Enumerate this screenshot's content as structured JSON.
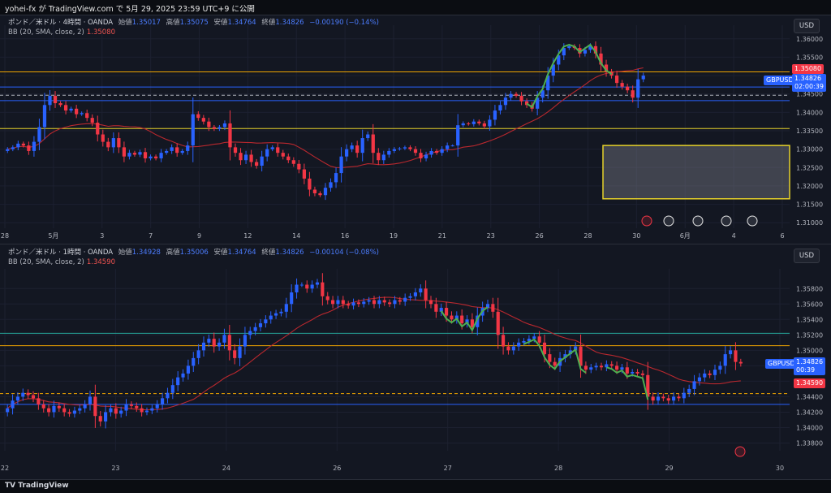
{
  "header": {
    "publish_line": "yohei-fx が TradingView.com で 5月 29, 2025 23:59 UTC+9 に公開"
  },
  "footer": {
    "logo_text": "TradingView"
  },
  "colors": {
    "up": "#2962ff",
    "down": "#f23645",
    "bb_mid": "#b9282e",
    "level_orange": "#f0a500",
    "level_yellow": "#e6d22a",
    "level_blue": "#2962ff",
    "level_teal": "#26a69a",
    "green_path": "#4caf50",
    "background": "#131722"
  },
  "top_chart": {
    "legend": {
      "symbol": "ポンド／米ドル · 4時間 · OANDA",
      "open_label": "始値",
      "open": "1.35017",
      "high_label": "高値",
      "high": "1.35075",
      "low_label": "安値",
      "low": "1.34764",
      "close_label": "終値",
      "close": "1.34826",
      "change": "−0.00190 (−0.14%)",
      "bb_label": "BB (20, SMA, close, 2)",
      "bb_value": "1.35080"
    },
    "currency": "USD",
    "price_axis": [
      "1.36000",
      "1.35500",
      "1.35000",
      "1.34500",
      "1.34000",
      "1.33500",
      "1.33000",
      "1.32500",
      "1.32000",
      "1.31500",
      "1.31000"
    ],
    "price_range": [
      1.3085,
      1.3615
    ],
    "x_labels": [
      "28",
      "5月",
      "3",
      "7",
      "9",
      "12",
      "14",
      "16",
      "19",
      "21",
      "23",
      "26",
      "28",
      "30",
      "6月",
      "4",
      "6"
    ],
    "badges": {
      "bb_tag": "1.35080",
      "symbol_tag": "GBPUSD",
      "price_tag": "1.34826",
      "countdown": "02:00:39"
    },
    "levels": [
      {
        "price": 1.351,
        "color": "orange",
        "style": "solid"
      },
      {
        "price": 1.3469,
        "color": "blue",
        "style": "solid"
      },
      {
        "price": 1.34465,
        "color": "white",
        "style": "dashed"
      },
      {
        "price": 1.3432,
        "color": "blue",
        "style": "solid"
      },
      {
        "price": 1.3356,
        "color": "yellow",
        "style": "solid"
      }
    ],
    "zone": {
      "price_top": 1.331,
      "price_bottom": 1.3165
    },
    "closes": [
      1.33,
      1.3305,
      1.3315,
      1.331,
      1.3295,
      1.332,
      1.336,
      1.342,
      1.3445,
      1.3425,
      1.342,
      1.3405,
      1.341,
      1.3395,
      1.3398,
      1.3385,
      1.3372,
      1.334,
      1.332,
      1.3305,
      1.333,
      1.3305,
      1.328,
      1.329,
      1.3285,
      1.3292,
      1.3275,
      1.328,
      1.3275,
      1.329,
      1.3295,
      1.3305,
      1.329,
      1.3295,
      1.331,
      1.3395,
      1.3385,
      1.3375,
      1.336,
      1.3355,
      1.336,
      1.337,
      1.3305,
      1.329,
      1.327,
      1.3285,
      1.3265,
      1.3255,
      1.328,
      1.33,
      1.3305,
      1.329,
      1.328,
      1.327,
      1.326,
      1.3245,
      1.322,
      1.319,
      1.318,
      1.3175,
      1.3195,
      1.321,
      1.3235,
      1.328,
      1.33,
      1.331,
      1.329,
      1.333,
      1.334,
      1.329,
      1.327,
      1.3285,
      1.3295,
      1.33,
      1.3302,
      1.3305,
      1.33,
      1.329,
      1.3275,
      1.3285,
      1.3295,
      1.329,
      1.33,
      1.331,
      1.331,
      1.3365,
      1.337,
      1.3368,
      1.3375,
      1.337,
      1.3362,
      1.338,
      1.3405,
      1.342,
      1.344,
      1.345,
      1.3445,
      1.343,
      1.342,
      1.341,
      1.344,
      1.346,
      1.35,
      1.353,
      1.3555,
      1.3575,
      1.358,
      1.3575,
      1.356,
      1.357,
      1.358,
      1.356,
      1.353,
      1.351,
      1.35,
      1.348,
      1.347,
      1.346,
      1.344,
      1.349,
      1.35
    ]
  },
  "bottom_chart": {
    "legend": {
      "symbol": "ポンド／米ドル · 1時間 · OANDA",
      "open_label": "始値",
      "open": "1.34928",
      "high_label": "高値",
      "high": "1.35006",
      "low_label": "安値",
      "low": "1.34764",
      "close_label": "終値",
      "close": "1.34826",
      "change": "−0.00104 (−0.08%)",
      "bb_label": "BB (20, SMA, close, 2)",
      "bb_value": "1.34590"
    },
    "currency": "USD",
    "price_axis": [
      "1.35800",
      "1.35600",
      "1.35400",
      "1.35200",
      "1.35000",
      "1.34800",
      "1.34600",
      "1.34400",
      "1.34200",
      "1.34000",
      "1.33800"
    ],
    "price_range": [
      1.337,
      1.3595
    ],
    "x_labels": [
      "22",
      "23",
      "24",
      "26",
      "27",
      "28",
      "29",
      "30"
    ],
    "badges": {
      "symbol_tag": "GBPUSD",
      "price_tag": "1.34826",
      "countdown": "00:39",
      "bb_tag": "1.34590"
    },
    "levels": [
      {
        "price": 1.3522,
        "color": "teal",
        "style": "solid"
      },
      {
        "price": 1.3506,
        "color": "orange",
        "style": "solid"
      },
      {
        "price": 1.3444,
        "color": "orange",
        "style": "dashed"
      },
      {
        "price": 1.343,
        "color": "blue",
        "style": "solid"
      }
    ],
    "closes": [
      1.3425,
      1.3435,
      1.344,
      1.3445,
      1.3442,
      1.3438,
      1.343,
      1.3425,
      1.342,
      1.3428,
      1.3425,
      1.342,
      1.3418,
      1.3422,
      1.3425,
      1.343,
      1.344,
      1.3415,
      1.3408,
      1.342,
      1.3425,
      1.3418,
      1.3422,
      1.343,
      1.3428,
      1.3425,
      1.342,
      1.3422,
      1.3425,
      1.343,
      1.3438,
      1.3445,
      1.3455,
      1.3465,
      1.347,
      1.348,
      1.349,
      1.35,
      1.351,
      1.3515,
      1.3505,
      1.351,
      1.352,
      1.35,
      1.349,
      1.3505,
      1.352,
      1.3525,
      1.353,
      1.3535,
      1.354,
      1.3545,
      1.3548,
      1.355,
      1.356,
      1.3575,
      1.3585,
      1.3585,
      1.358,
      1.3585,
      1.3588,
      1.357,
      1.3565,
      1.356,
      1.3565,
      1.356,
      1.3558,
      1.3562,
      1.356,
      1.3563,
      1.3565,
      1.356,
      1.3565,
      1.3562,
      1.356,
      1.3565,
      1.3563,
      1.3568,
      1.357,
      1.3575,
      1.358,
      1.3565,
      1.356,
      1.355,
      1.3555,
      1.3545,
      1.354,
      1.3545,
      1.3535,
      1.354,
      1.353,
      1.3545,
      1.3555,
      1.356,
      1.355,
      1.352,
      1.3505,
      1.35,
      1.3505,
      1.351,
      1.3512,
      1.3515,
      1.3518,
      1.351,
      1.3495,
      1.3485,
      1.348,
      1.349,
      1.3495,
      1.35,
      1.3505,
      1.348,
      1.3475,
      1.3478,
      1.348,
      1.3478,
      1.3482,
      1.348,
      1.3475,
      1.3478,
      1.347,
      1.3472,
      1.347,
      1.3468,
      1.344,
      1.3435,
      1.344,
      1.3438,
      1.3435,
      1.344,
      1.3438,
      1.3445,
      1.345,
      1.346,
      1.3465,
      1.347,
      1.3468,
      1.3475,
      1.348,
      1.3495,
      1.35,
      1.3485,
      1.3483
    ]
  }
}
